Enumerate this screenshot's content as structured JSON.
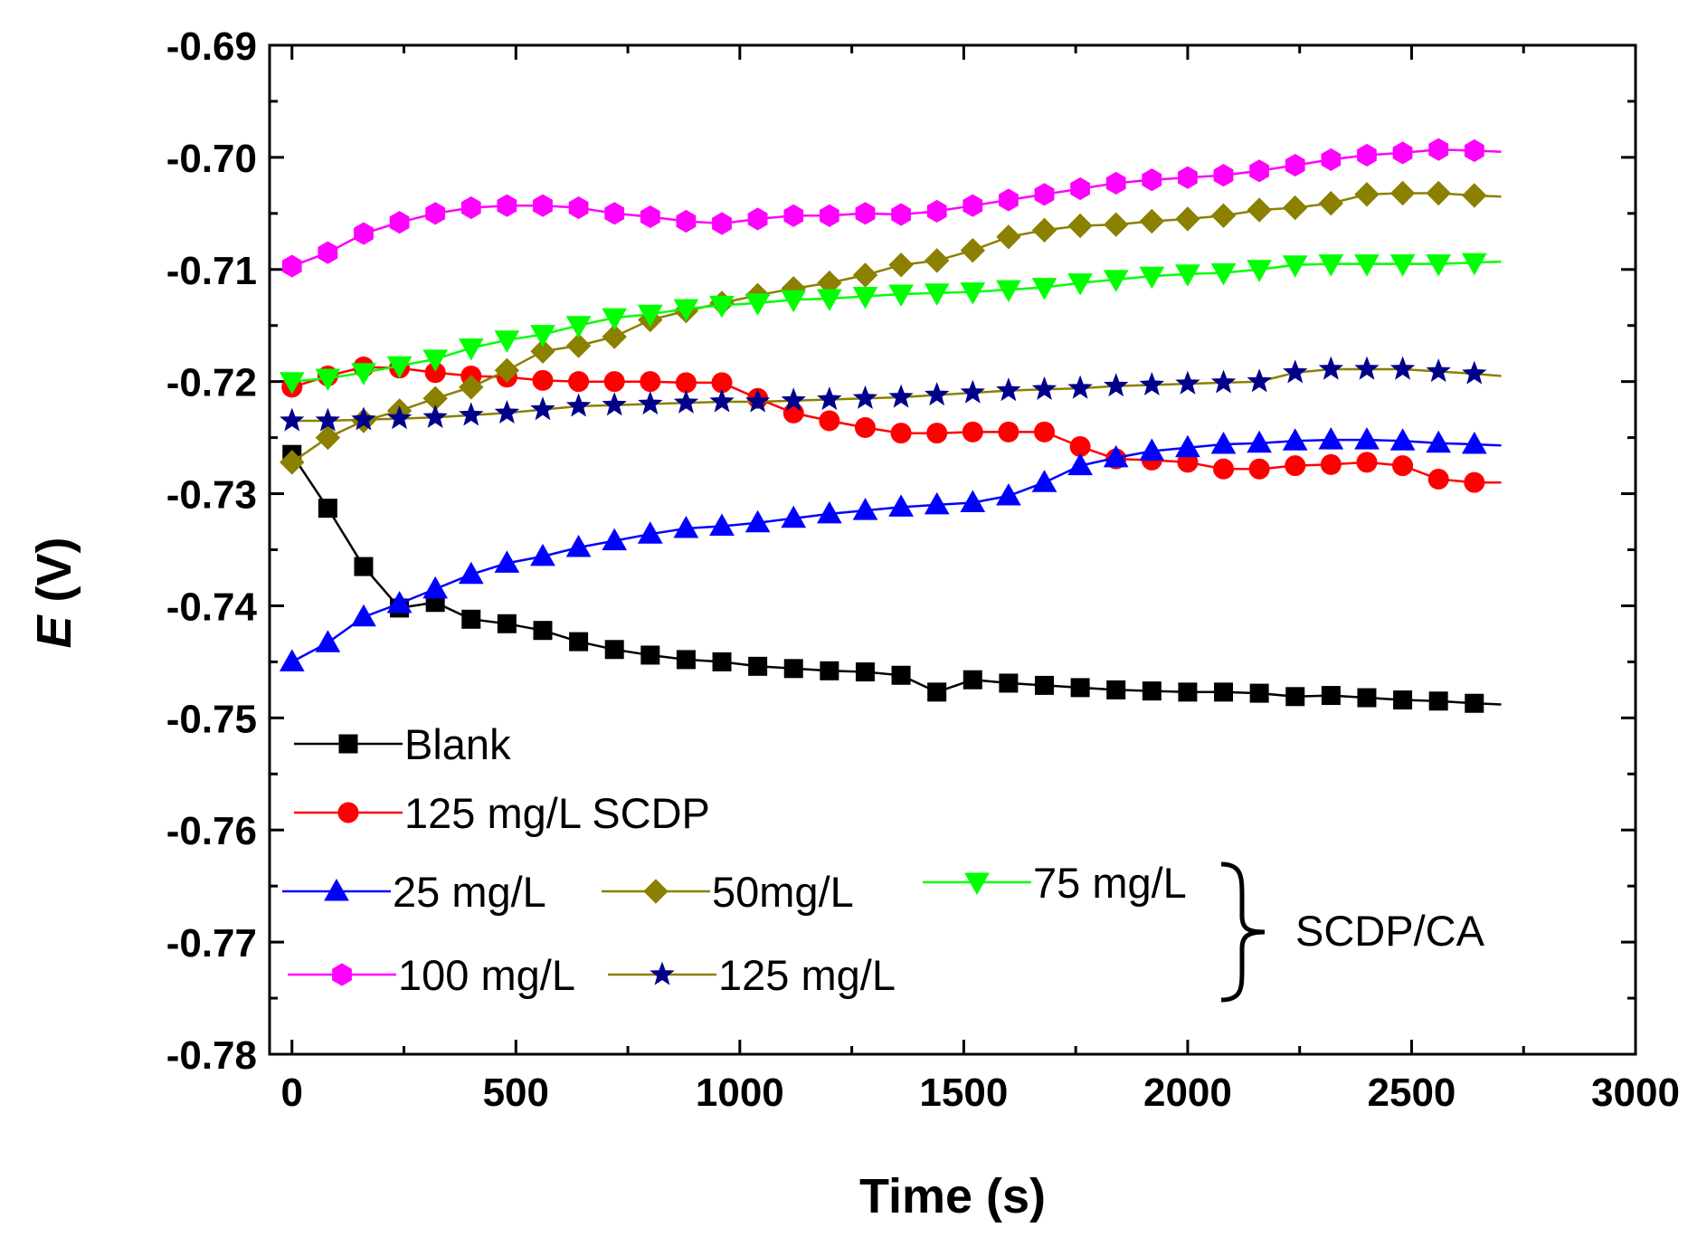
{
  "chart_data": {
    "type": "line",
    "title": "",
    "xlabel": "Time (s)",
    "ylabel_italic": "E",
    "ylabel_unit": " (V)",
    "xlim": [
      -50,
      3000
    ],
    "ylim": [
      -0.78,
      -0.69
    ],
    "x_ticks": [
      0,
      500,
      1000,
      1500,
      2000,
      2500,
      3000
    ],
    "x_tick_labels": [
      "0",
      "500",
      "1000",
      "1500",
      "2000",
      "2500",
      "3000"
    ],
    "y_ticks": [
      -0.69,
      -0.7,
      -0.71,
      -0.72,
      -0.73,
      -0.74,
      -0.75,
      -0.76,
      -0.77,
      -0.78
    ],
    "y_tick_labels": [
      "-0.69",
      "-0.70",
      "-0.71",
      "-0.72",
      "-0.73",
      "-0.74",
      "-0.75",
      "-0.76",
      "-0.77",
      "-0.78"
    ],
    "grid": false,
    "legend_placement": "bottom-left",
    "group_label": "SCDP/CA",
    "series": [
      {
        "name": "Blank",
        "legend_label": "Blank",
        "color": "#000000",
        "line_color": "#000000",
        "marker": "square",
        "x": [
          0,
          80,
          160,
          240,
          320,
          400,
          480,
          560,
          640,
          720,
          800,
          880,
          960,
          1040,
          1120,
          1200,
          1280,
          1360,
          1440,
          1520,
          1600,
          1680,
          1760,
          1840,
          1920,
          2000,
          2080,
          2160,
          2240,
          2320,
          2400,
          2480,
          2560,
          2640,
          2700
        ],
        "values": [
          -0.7265,
          -0.7313,
          -0.7365,
          -0.7402,
          -0.7397,
          -0.7412,
          -0.7416,
          -0.7422,
          -0.7432,
          -0.7439,
          -0.7444,
          -0.7448,
          -0.745,
          -0.7454,
          -0.7456,
          -0.7458,
          -0.7459,
          -0.7462,
          -0.7477,
          -0.7466,
          -0.7469,
          -0.7471,
          -0.7473,
          -0.7475,
          -0.7476,
          -0.7477,
          -0.7477,
          -0.7478,
          -0.7481,
          -0.748,
          -0.7482,
          -0.7484,
          -0.7485,
          -0.7487,
          -0.7488
        ]
      },
      {
        "name": "125 mg/L SCDP",
        "legend_label": "125 mg/L SCDP",
        "color": "#ff0000",
        "line_color": "#ff0000",
        "marker": "circle",
        "x": [
          0,
          80,
          160,
          240,
          320,
          400,
          480,
          560,
          640,
          720,
          800,
          880,
          960,
          1040,
          1120,
          1200,
          1280,
          1360,
          1440,
          1520,
          1600,
          1680,
          1760,
          1840,
          1920,
          2000,
          2080,
          2160,
          2240,
          2320,
          2400,
          2480,
          2560,
          2640,
          2700
        ],
        "values": [
          -0.7205,
          -0.7195,
          -0.7187,
          -0.7188,
          -0.7192,
          -0.7195,
          -0.7196,
          -0.7199,
          -0.72,
          -0.72,
          -0.72,
          -0.7201,
          -0.7201,
          -0.7215,
          -0.7228,
          -0.7235,
          -0.7241,
          -0.7246,
          -0.7246,
          -0.7245,
          -0.7245,
          -0.7245,
          -0.7258,
          -0.7269,
          -0.727,
          -0.7272,
          -0.7278,
          -0.7278,
          -0.7275,
          -0.7274,
          -0.7272,
          -0.7275,
          -0.7287,
          -0.729,
          -0.729
        ]
      },
      {
        "name": "25 mg/L",
        "legend_label": "25 mg/L",
        "color": "#0000ff",
        "line_color": "#0000ff",
        "marker": "triangle-up",
        "x": [
          0,
          80,
          160,
          240,
          320,
          400,
          480,
          560,
          640,
          720,
          800,
          880,
          960,
          1040,
          1120,
          1200,
          1280,
          1360,
          1440,
          1520,
          1600,
          1680,
          1760,
          1840,
          1920,
          2000,
          2080,
          2160,
          2240,
          2320,
          2400,
          2480,
          2560,
          2640,
          2700
        ],
        "values": [
          -0.745,
          -0.7433,
          -0.741,
          -0.7398,
          -0.7385,
          -0.7372,
          -0.7362,
          -0.7356,
          -0.7348,
          -0.7342,
          -0.7336,
          -0.7331,
          -0.7329,
          -0.7326,
          -0.7322,
          -0.7318,
          -0.7315,
          -0.7312,
          -0.731,
          -0.7308,
          -0.7302,
          -0.729,
          -0.7275,
          -0.7268,
          -0.7262,
          -0.7259,
          -0.7256,
          -0.7255,
          -0.7253,
          -0.7252,
          -0.7252,
          -0.7253,
          -0.7255,
          -0.7256,
          -0.7257
        ]
      },
      {
        "name": "50mg/L",
        "legend_label": "50mg/L",
        "color": "#8b8000",
        "line_color": "#8b8000",
        "marker": "diamond",
        "x": [
          0,
          80,
          160,
          240,
          320,
          400,
          480,
          560,
          640,
          720,
          800,
          880,
          960,
          1040,
          1120,
          1200,
          1280,
          1360,
          1440,
          1520,
          1600,
          1680,
          1760,
          1840,
          1920,
          2000,
          2080,
          2160,
          2240,
          2320,
          2400,
          2480,
          2560,
          2640,
          2700
        ],
        "values": [
          -0.7272,
          -0.725,
          -0.7235,
          -0.7226,
          -0.7215,
          -0.7205,
          -0.719,
          -0.7173,
          -0.7168,
          -0.716,
          -0.7145,
          -0.7137,
          -0.713,
          -0.7123,
          -0.7117,
          -0.7112,
          -0.7105,
          -0.7096,
          -0.7092,
          -0.7083,
          -0.7071,
          -0.7065,
          -0.7061,
          -0.706,
          -0.7057,
          -0.7055,
          -0.7052,
          -0.7047,
          -0.7045,
          -0.7041,
          -0.7033,
          -0.7032,
          -0.7032,
          -0.7034,
          -0.7035
        ]
      },
      {
        "name": "75 mg/L",
        "legend_label": "75 mg/L",
        "color": "#00ff00",
        "line_color": "#00ff00",
        "marker": "triangle-down",
        "x": [
          0,
          80,
          160,
          240,
          320,
          400,
          480,
          560,
          640,
          720,
          800,
          880,
          960,
          1040,
          1120,
          1200,
          1280,
          1360,
          1440,
          1520,
          1600,
          1680,
          1760,
          1840,
          1920,
          2000,
          2080,
          2160,
          2240,
          2320,
          2400,
          2480,
          2560,
          2640,
          2700
        ],
        "values": [
          -0.72,
          -0.7197,
          -0.7192,
          -0.7186,
          -0.718,
          -0.717,
          -0.7163,
          -0.7158,
          -0.715,
          -0.7143,
          -0.714,
          -0.7135,
          -0.7132,
          -0.713,
          -0.7127,
          -0.7126,
          -0.7124,
          -0.7122,
          -0.7121,
          -0.712,
          -0.7118,
          -0.7116,
          -0.7112,
          -0.7109,
          -0.7106,
          -0.7104,
          -0.7103,
          -0.71,
          -0.7096,
          -0.7095,
          -0.7095,
          -0.7095,
          -0.7095,
          -0.7094,
          -0.7093
        ]
      },
      {
        "name": "100 mg/L",
        "legend_label": "100 mg/L",
        "color": "#ff00ff",
        "line_color": "#ff00ff",
        "marker": "hexagon",
        "x": [
          0,
          80,
          160,
          240,
          320,
          400,
          480,
          560,
          640,
          720,
          800,
          880,
          960,
          1040,
          1120,
          1200,
          1280,
          1360,
          1440,
          1520,
          1600,
          1680,
          1760,
          1840,
          1920,
          2000,
          2080,
          2160,
          2240,
          2320,
          2400,
          2480,
          2560,
          2640,
          2700
        ],
        "values": [
          -0.7097,
          -0.7085,
          -0.7068,
          -0.7058,
          -0.705,
          -0.7045,
          -0.7043,
          -0.7043,
          -0.7045,
          -0.705,
          -0.7053,
          -0.7057,
          -0.7059,
          -0.7055,
          -0.7052,
          -0.7052,
          -0.705,
          -0.7051,
          -0.7048,
          -0.7043,
          -0.7038,
          -0.7033,
          -0.7028,
          -0.7023,
          -0.702,
          -0.7018,
          -0.7016,
          -0.7012,
          -0.7007,
          -0.7002,
          -0.6998,
          -0.6996,
          -0.6993,
          -0.6994,
          -0.6995
        ]
      },
      {
        "name": "125 mg/L",
        "legend_label": "125 mg/L",
        "color": "#00008b",
        "line_color": "#8b8000",
        "marker": "star",
        "x": [
          0,
          80,
          160,
          240,
          320,
          400,
          480,
          560,
          640,
          720,
          800,
          880,
          960,
          1040,
          1120,
          1200,
          1280,
          1360,
          1440,
          1520,
          1600,
          1680,
          1760,
          1840,
          1920,
          2000,
          2080,
          2160,
          2240,
          2320,
          2400,
          2480,
          2560,
          2640,
          2700
        ],
        "values": [
          -0.7235,
          -0.7235,
          -0.7234,
          -0.7233,
          -0.7232,
          -0.723,
          -0.7228,
          -0.7225,
          -0.7222,
          -0.7221,
          -0.722,
          -0.7219,
          -0.7218,
          -0.7218,
          -0.7217,
          -0.7216,
          -0.7215,
          -0.7214,
          -0.7212,
          -0.721,
          -0.7208,
          -0.7207,
          -0.7206,
          -0.7204,
          -0.7203,
          -0.7202,
          -0.7201,
          -0.72,
          -0.7192,
          -0.7189,
          -0.7189,
          -0.7189,
          -0.7191,
          -0.7193,
          -0.7195
        ]
      }
    ]
  }
}
